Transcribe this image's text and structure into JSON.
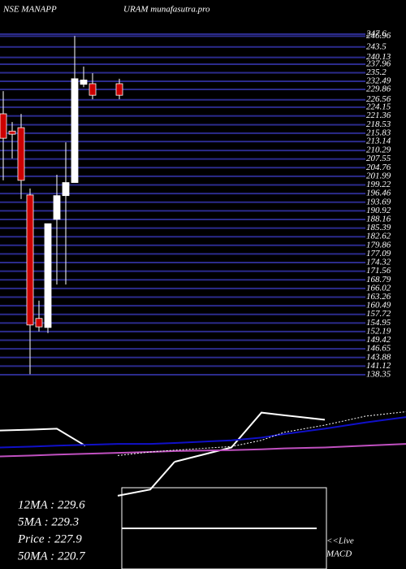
{
  "chart_data": {
    "type": "candlestick",
    "title_left": "NSE MANAPP",
    "title_right": "URAM munafasutra.pro",
    "open": [
      222.05,
      216.5,
      217.6,
      196.0,
      156.4,
      153.5,
      188.2,
      195.8,
      200.0,
      231.5,
      231.7,
      null,
      null,
      231.7
    ],
    "high": [
      229.3,
      219.4,
      222.0,
      198.1,
      162.1,
      186.8,
      202.5,
      212.9,
      247.0,
      237.2,
      235.1,
      null,
      null,
      233.3
    ],
    "low": [
      200.7,
      207.7,
      194.7,
      138.5,
      152.2,
      151.7,
      167.3,
      167.3,
      200.0,
      230.6,
      226.7,
      null,
      null,
      226.7
    ],
    "close": [
      214.2,
      215.5,
      200.7,
      154.3,
      153.7,
      186.8,
      195.8,
      200.0,
      233.3,
      232.9,
      228.0,
      null,
      null,
      228.0
    ],
    "up_color": "#ffffff",
    "down_color": "#cc0000",
    "grid_color": "#2b2b8c",
    "ylim": [
      138.35,
      247.6
    ],
    "yticks": [
      247.6,
      246.96,
      243.5,
      240.13,
      237.96,
      235.2,
      232.49,
      229.86,
      226.56,
      224.15,
      221.36,
      218.53,
      215.83,
      213.14,
      210.29,
      207.55,
      204.76,
      201.99,
      199.22,
      196.46,
      193.69,
      190.92,
      188.16,
      185.39,
      182.62,
      179.86,
      177.09,
      174.32,
      171.56,
      168.79,
      166.02,
      163.26,
      160.49,
      157.72,
      154.95,
      152.19,
      149.42,
      146.65,
      143.88,
      141.12,
      138.35
    ],
    "indicator": {
      "x": [
        0,
        40,
        70,
        105,
        145,
        185,
        215,
        285,
        322,
        350,
        400,
        450,
        500
      ],
      "ylim": [
        0,
        100
      ],
      "series": [
        {
          "color": "#ffffff",
          "dash": false,
          "values": [
            64,
            65,
            66,
            47,
            null,
            null,
            29,
            45,
            84,
            81,
            76,
            null,
            null
          ]
        },
        {
          "color": "#1010c8",
          "dash": false,
          "values": [
            45,
            46,
            47,
            48,
            49,
            49,
            50,
            53,
            56,
            60,
            66,
            73,
            79
          ]
        },
        {
          "color": "#c050c0",
          "dash": false,
          "values": [
            35,
            36,
            37,
            38,
            39,
            40,
            41,
            42,
            43,
            44,
            45,
            47,
            49
          ]
        },
        {
          "color": "#ffffff",
          "dash": true,
          "values": [
            null,
            null,
            null,
            null,
            36,
            40,
            42,
            46,
            53,
            62,
            70,
            80,
            85
          ]
        },
        {
          "color": "#ffffff",
          "dash": false,
          "values": [
            null,
            null,
            null,
            null,
            -9,
            -2,
            29,
            null,
            null,
            null,
            null,
            null,
            null
          ]
        }
      ]
    },
    "stats": [
      "12MA : 229.6",
      "5MA : 229.3",
      "Price   : 227.9",
      "50MA : 220.7"
    ],
    "live_label": "<<Live",
    "macd_label": "MACD"
  }
}
